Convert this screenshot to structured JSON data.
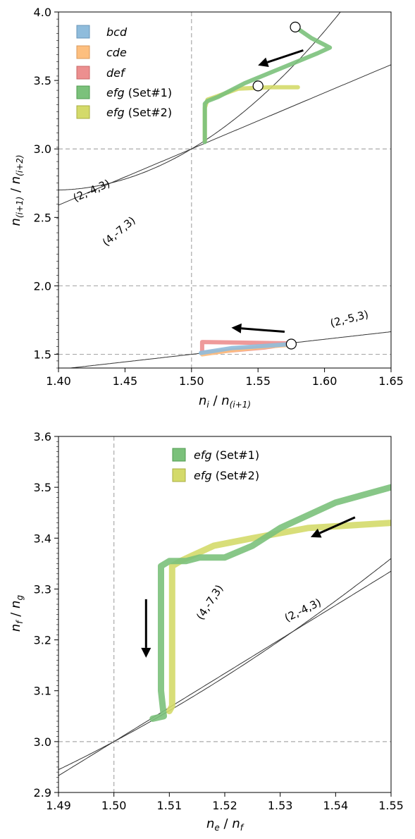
{
  "chart_data": [
    {
      "type": "line",
      "xlim": [
        1.4,
        1.65
      ],
      "ylim": [
        1.4,
        4.0
      ],
      "xticks": [
        "1.40",
        "1.45",
        "1.50",
        "1.55",
        "1.60",
        "1.65"
      ],
      "yticks": [
        "1.5",
        "2.0",
        "2.5",
        "3.0",
        "3.5",
        "4.0"
      ],
      "xlabel": {
        "parts": [
          [
            "n",
            "i",
            ""
          ],
          [
            " / ",
            "",
            ""
          ],
          [
            "n",
            "(i+1)",
            ""
          ]
        ]
      },
      "ylabel": {
        "parts": [
          [
            "n",
            "(i+1)",
            ""
          ],
          [
            " / ",
            "",
            ""
          ],
          [
            "n",
            "(i+2)",
            ""
          ]
        ]
      },
      "grid": "dashed reference lines at x=1.50 and y=1.5, 2.0, 3.0",
      "reference_lines": {
        "x": [
          1.5
        ],
        "y": [
          1.5,
          2.0,
          3.0
        ]
      },
      "legend": {
        "placement": "top-left",
        "entries": [
          {
            "label": "bcd",
            "suffix": "",
            "color": "#8fbcdc"
          },
          {
            "label": "cde",
            "suffix": "",
            "color": "#fdbf7f"
          },
          {
            "label": "def",
            "suffix": "",
            "color": "#ec8f8f"
          },
          {
            "label": "efg",
            "suffix": " (Set#1)",
            "color": "#7bc17b"
          },
          {
            "label": "efg",
            "suffix": " (Set#2)",
            "color": "#d4da6a"
          }
        ]
      },
      "theory_curves": [
        {
          "label": "(2,-4,3)",
          "y_of_x": "2/(4-3x)+... (resonance line)"
        },
        {
          "label": "(4,-7,3)",
          "y_of_x": "resonance line"
        },
        {
          "label": "(2,-5,3)",
          "y_of_x": "resonance line"
        }
      ],
      "series": [
        {
          "name": "efg (Set#1)",
          "color": "#7bc17b",
          "points": [
            [
              1.578,
              3.89
            ],
            [
              1.59,
              3.81
            ],
            [
              1.6,
              3.76
            ],
            [
              1.604,
              3.74
            ],
            [
              1.595,
              3.7
            ],
            [
              1.565,
              3.58
            ],
            [
              1.54,
              3.48
            ],
            [
              1.52,
              3.38
            ],
            [
              1.512,
              3.35
            ],
            [
              1.51,
              3.33
            ],
            [
              1.51,
              3.05
            ]
          ]
        },
        {
          "name": "efg (Set#2)",
          "color": "#d4da6a",
          "points": [
            [
              1.58,
              3.45
            ],
            [
              1.56,
              3.45
            ],
            [
              1.535,
              3.44
            ],
            [
              1.518,
              3.38
            ],
            [
              1.512,
              3.36
            ],
            [
              1.51,
              3.3
            ],
            [
              1.51,
              3.06
            ]
          ]
        },
        {
          "name": "bcd",
          "color": "#8fbcdc",
          "points": [
            [
              1.507,
              1.51
            ],
            [
              1.53,
              1.545
            ],
            [
              1.56,
              1.565
            ],
            [
              1.575,
              1.575
            ]
          ]
        },
        {
          "name": "cde",
          "color": "#fdbf7f",
          "points": [
            [
              1.508,
              1.5
            ],
            [
              1.53,
              1.53
            ],
            [
              1.56,
              1.56
            ],
            [
              1.575,
              1.57
            ]
          ]
        },
        {
          "name": "def",
          "color": "#ec8f8f",
          "points": [
            [
              1.508,
              1.52
            ],
            [
              1.508,
              1.59
            ],
            [
              1.575,
              1.58
            ],
            [
              1.555,
              1.55
            ],
            [
              1.52,
              1.52
            ],
            [
              1.508,
              1.51
            ]
          ]
        }
      ],
      "markers": [
        [
          1.578,
          3.89
        ],
        [
          1.55,
          3.46
        ],
        [
          1.575,
          1.575
        ]
      ],
      "arrows": [
        {
          "from": [
            1.584,
            3.72
          ],
          "to": [
            1.55,
            3.61
          ]
        },
        {
          "from": [
            1.57,
            1.665
          ],
          "to": [
            1.53,
            1.695
          ]
        }
      ]
    },
    {
      "type": "line",
      "xlim": [
        1.49,
        1.55
      ],
      "ylim": [
        2.9,
        3.6
      ],
      "xticks": [
        "1.49",
        "1.50",
        "1.51",
        "1.52",
        "1.53",
        "1.54",
        "1.55"
      ],
      "yticks": [
        "2.9",
        "3.0",
        "3.1",
        "3.2",
        "3.3",
        "3.4",
        "3.5",
        "3.6"
      ],
      "xlabel": {
        "parts": [
          [
            "n",
            "e",
            ""
          ],
          [
            " / ",
            "",
            ""
          ],
          [
            "n",
            "f",
            ""
          ]
        ]
      },
      "ylabel": {
        "parts": [
          [
            "n",
            "f",
            ""
          ],
          [
            " / ",
            "",
            ""
          ],
          [
            "n",
            "g",
            ""
          ]
        ]
      },
      "reference_lines": {
        "x": [
          1.5
        ],
        "y": [
          3.0
        ]
      },
      "legend": {
        "placement": "top-center",
        "entries": [
          {
            "label": "efg",
            "suffix": " (Set#1)",
            "color": "#7bc17b"
          },
          {
            "label": "efg",
            "suffix": " (Set#2)",
            "color": "#d4da6a"
          }
        ]
      },
      "theory_curves": [
        {
          "label": "(2,-4,3)"
        },
        {
          "label": "(4,-7,3)"
        }
      ],
      "series": [
        {
          "name": "efg (Set#1)",
          "color": "#7bc17b",
          "points": [
            [
              1.55,
              3.5
            ],
            [
              1.54,
              3.47
            ],
            [
              1.53,
              3.42
            ],
            [
              1.525,
              3.385
            ],
            [
              1.52,
              3.362
            ],
            [
              1.5155,
              3.362
            ],
            [
              1.513,
              3.355
            ],
            [
              1.51,
              3.355
            ],
            [
              1.5085,
              3.345
            ],
            [
              1.5085,
              3.1
            ],
            [
              1.509,
              3.05
            ],
            [
              1.507,
              3.045
            ]
          ]
        },
        {
          "name": "efg (Set#2)",
          "color": "#d4da6a",
          "points": [
            [
              1.55,
              3.43
            ],
            [
              1.535,
              3.42
            ],
            [
              1.525,
              3.4
            ],
            [
              1.518,
              3.385
            ],
            [
              1.514,
              3.365
            ],
            [
              1.512,
              3.355
            ],
            [
              1.5105,
              3.345
            ],
            [
              1.5105,
              3.07
            ],
            [
              1.51,
              3.06
            ]
          ]
        }
      ],
      "arrows": [
        {
          "from": [
            1.5435,
            3.441
          ],
          "to": [
            1.5355,
            3.402
          ]
        },
        {
          "from": [
            1.5058,
            3.28
          ],
          "to": [
            1.5058,
            3.165
          ]
        }
      ]
    }
  ],
  "curve_labels": {
    "top_a": "(2,-4,3)",
    "top_b": "(4,-7,3)",
    "top_c": "(2,-5,3)",
    "bot_a": "(4,-7,3)",
    "bot_b": "(2,-4,3)"
  },
  "legend_top": [
    {
      "label": "bcd",
      "suffix": ""
    },
    {
      "label": "cde",
      "suffix": ""
    },
    {
      "label": "def",
      "suffix": ""
    },
    {
      "label": "efg",
      "suffix": " (Set#1)"
    },
    {
      "label": "efg",
      "suffix": " (Set#2)"
    }
  ],
  "legend_bottom": [
    {
      "label": "efg",
      "suffix": " (Set#1)"
    },
    {
      "label": "efg",
      "suffix": " (Set#2)"
    }
  ]
}
